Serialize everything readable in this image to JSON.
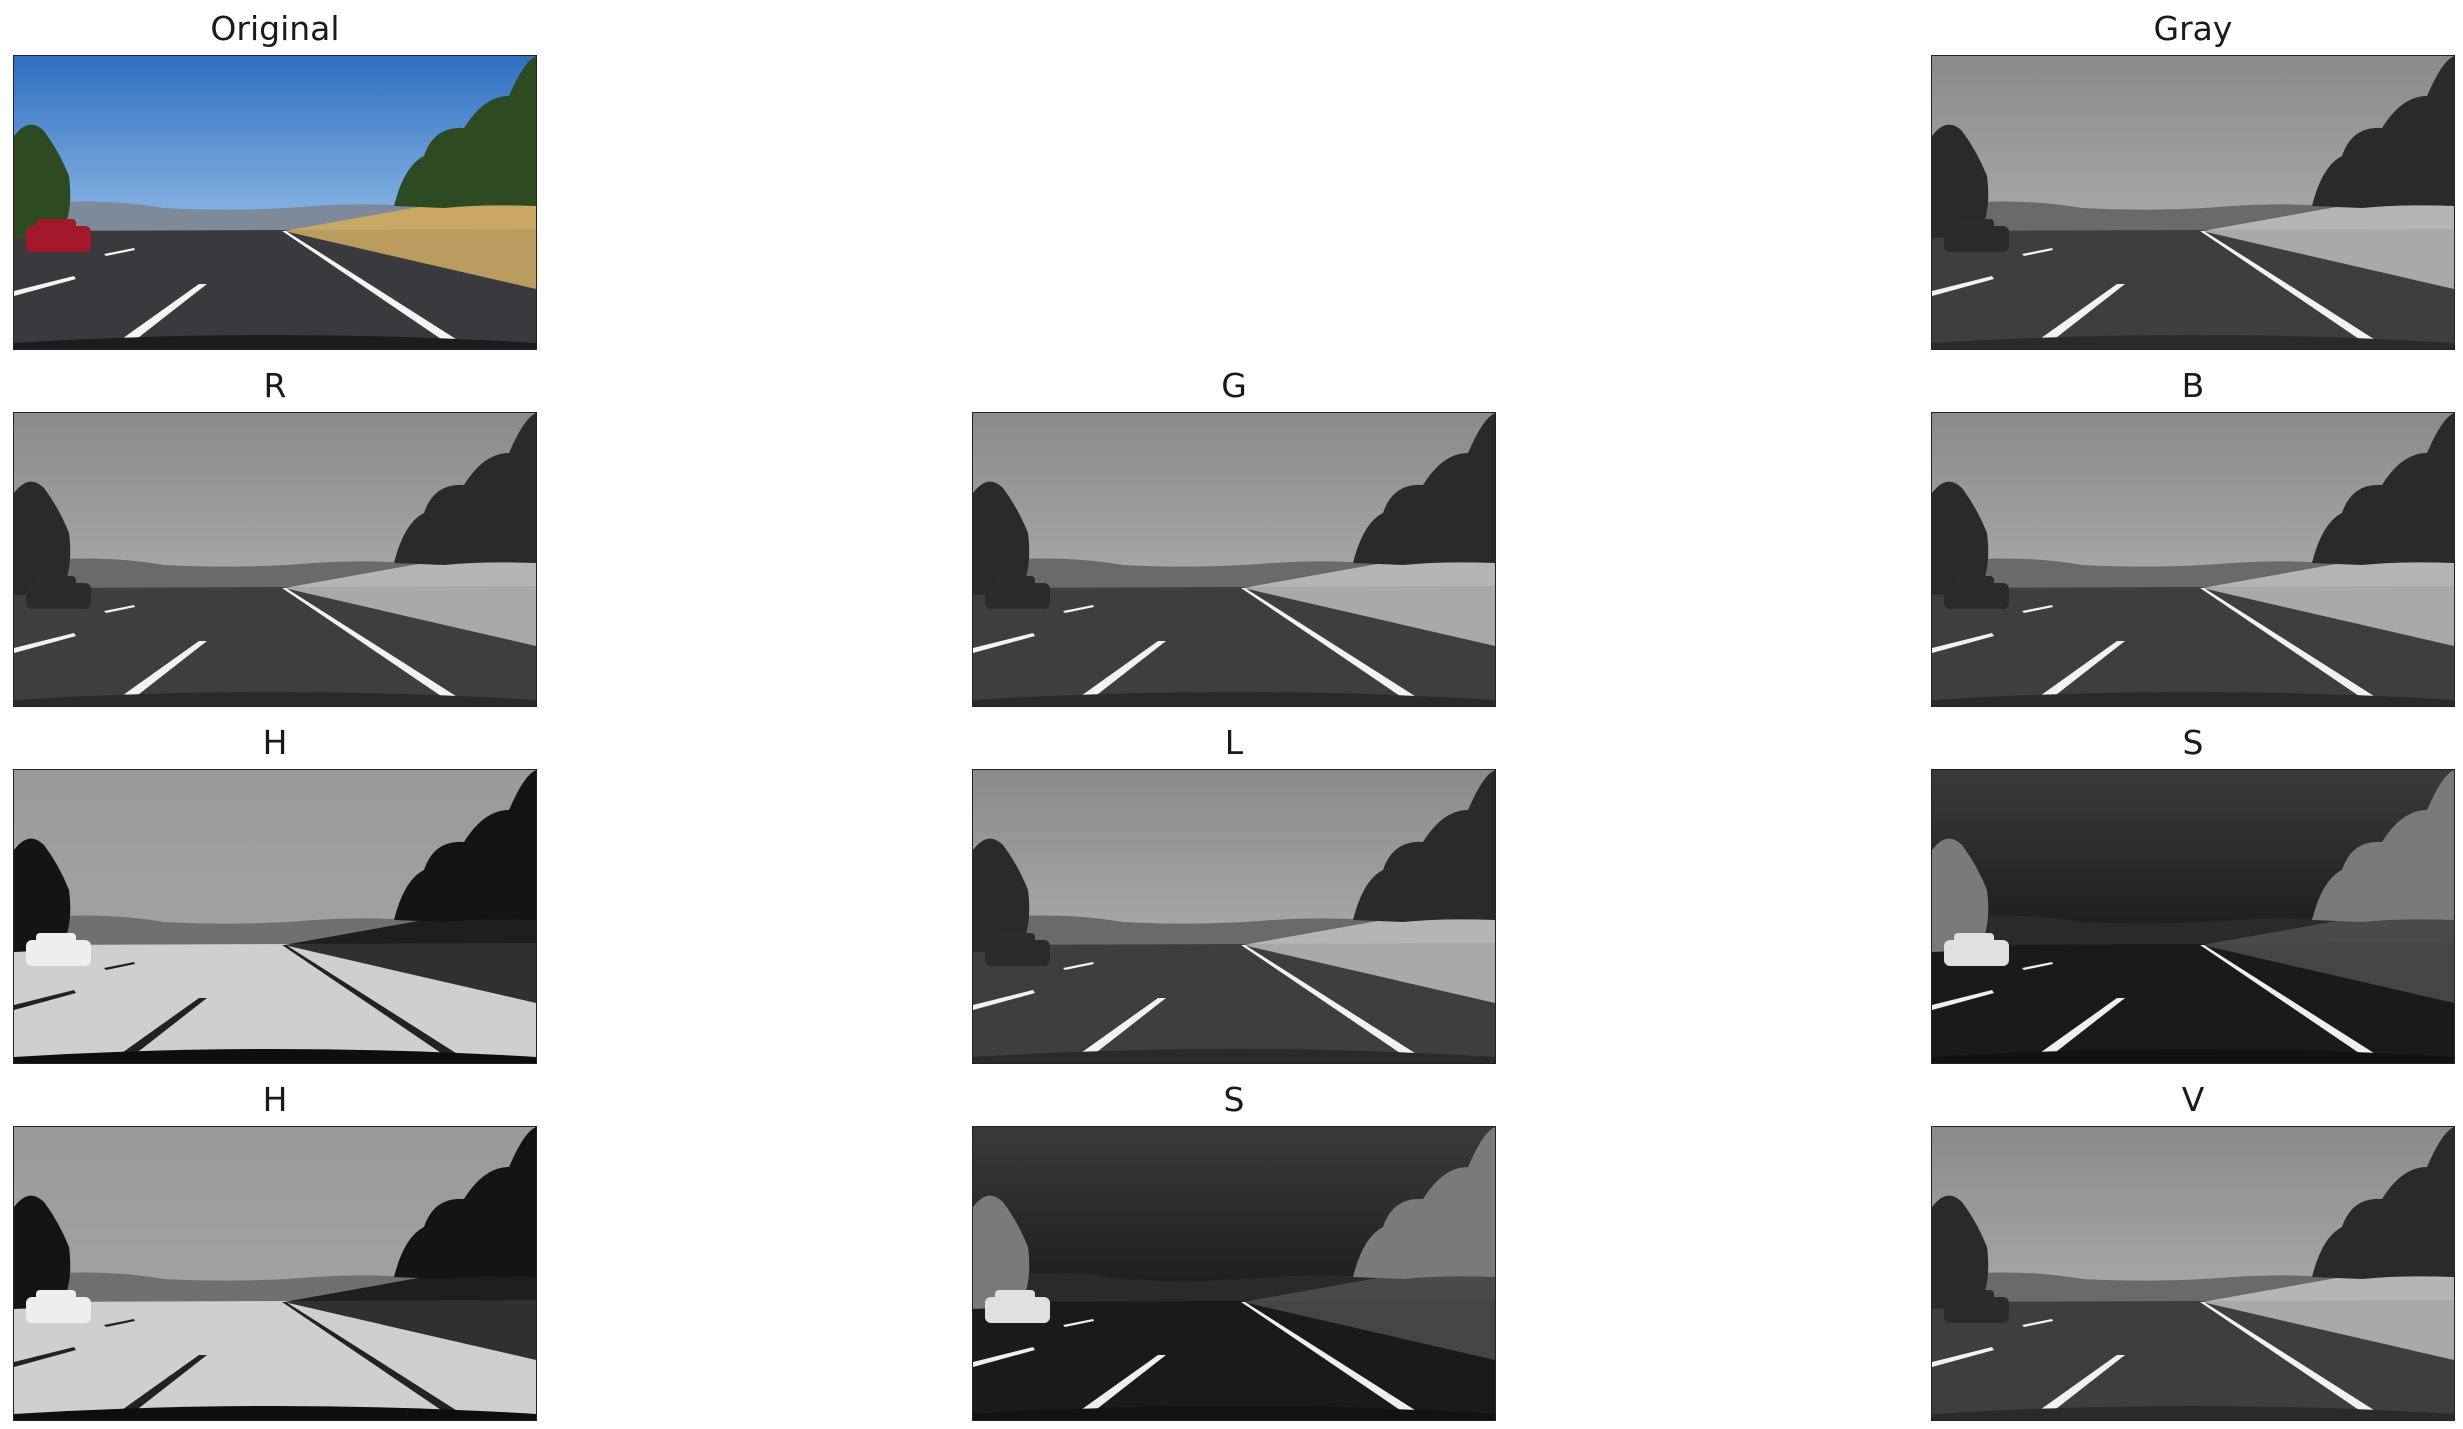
{
  "panels": [
    {
      "title": "Original",
      "mode": "color",
      "style": "road"
    },
    {
      "title": "Gray",
      "mode": "gray",
      "style": "road"
    },
    {
      "title": "R",
      "mode": "gray",
      "style": "road"
    },
    {
      "title": "G",
      "mode": "gray",
      "style": "road"
    },
    {
      "title": "B",
      "mode": "gray",
      "style": "road"
    },
    {
      "title": "H",
      "mode": "gray",
      "style": "hue"
    },
    {
      "title": "L",
      "mode": "gray",
      "style": "road"
    },
    {
      "title": "S",
      "mode": "gray",
      "style": "sat"
    },
    {
      "title": "H",
      "mode": "gray",
      "style": "hue"
    },
    {
      "title": "S",
      "mode": "gray",
      "style": "sat"
    },
    {
      "title": "V",
      "mode": "gray",
      "style": "road"
    }
  ]
}
